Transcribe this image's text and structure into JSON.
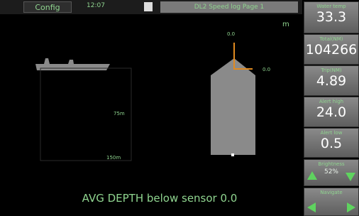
{
  "header": {
    "config_button": "Config",
    "time": "12:07",
    "title": "DL2 Speed log Page 1"
  },
  "display": {
    "unit": "m",
    "top_value": "0.0",
    "side_value": "0.0",
    "depth_mid": "75m",
    "depth_bottom": "150m",
    "footer": "AVG DEPTH below sensor 0.0"
  },
  "tiles": [
    {
      "label": "Water temp",
      "value": "33.3"
    },
    {
      "label": "Total(NM)",
      "value": "104266"
    },
    {
      "label": "Trip(NM)",
      "value": "4.89"
    },
    {
      "label": "Alert high",
      "value": "24.0"
    },
    {
      "label": "Alert low",
      "value": "0.5"
    }
  ],
  "brightness": {
    "label": "Brightness",
    "value": "52%"
  },
  "navigate": {
    "label": "Navigate"
  }
}
